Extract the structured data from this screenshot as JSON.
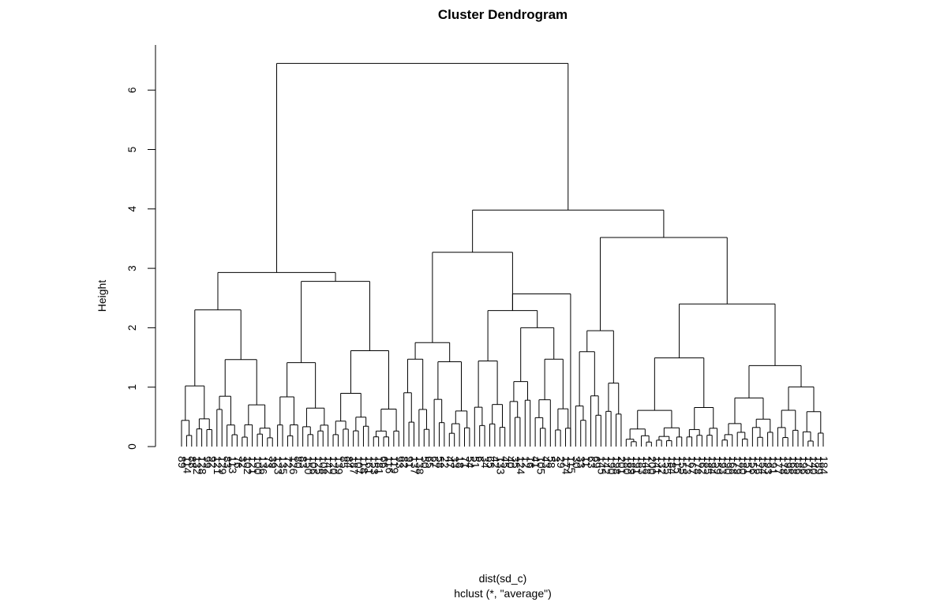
{
  "chart_data": {
    "type": "dendrogram",
    "title": "Cluster Dendrogram",
    "ylabel": "Height",
    "xlabel": "dist(sd_c)",
    "sublabel": "hclust (*, \"average\")",
    "ylim": [
      0,
      6.5
    ],
    "yticks": [
      0,
      1,
      2,
      3,
      4,
      5,
      6
    ],
    "root_height": 6.45,
    "major_merges": [
      {
        "group": "left",
        "height": 2.93
      },
      {
        "group": "right",
        "height": 3.98
      },
      {
        "group": "right-left",
        "height": 3.27
      },
      {
        "group": "right-right",
        "height": 3.52
      }
    ],
    "leaf_labels": [
      "89",
      "114",
      "88",
      "132",
      "128",
      "99",
      "92",
      "121",
      "129",
      "83",
      "113",
      "76",
      "32",
      "102",
      "121",
      "100",
      "136",
      "73",
      "39",
      "123",
      "135",
      "72",
      "126",
      "80",
      "83",
      "150",
      "106",
      "125",
      "108",
      "142",
      "120",
      "139",
      "85",
      "84",
      "187",
      "107",
      "118",
      "161",
      "153",
      "181",
      "66",
      "116",
      "119",
      "93",
      "82",
      "91",
      "137",
      "138",
      "50",
      "65",
      "67",
      "58",
      "22",
      "47",
      "33",
      "18",
      "71",
      "54",
      "51",
      "6",
      "34",
      "65",
      "42",
      "133",
      "45",
      "40",
      "35",
      "124",
      "12",
      "16",
      "41",
      "105",
      "43",
      "58",
      "3",
      "29",
      "174",
      "115",
      "30",
      "33",
      "11",
      "63",
      "69",
      "145",
      "142",
      "190",
      "198",
      "201",
      "180",
      "189",
      "191",
      "183",
      "148",
      "200",
      "141",
      "132",
      "155",
      "184",
      "115",
      "155",
      "173",
      "167",
      "178",
      "162",
      "185",
      "194",
      "159",
      "193",
      "190",
      "168",
      "179",
      "180",
      "151",
      "156",
      "176",
      "154",
      "193",
      "191",
      "177",
      "178",
      "195",
      "168",
      "186",
      "196",
      "176",
      "140",
      "189",
      "184"
    ]
  }
}
